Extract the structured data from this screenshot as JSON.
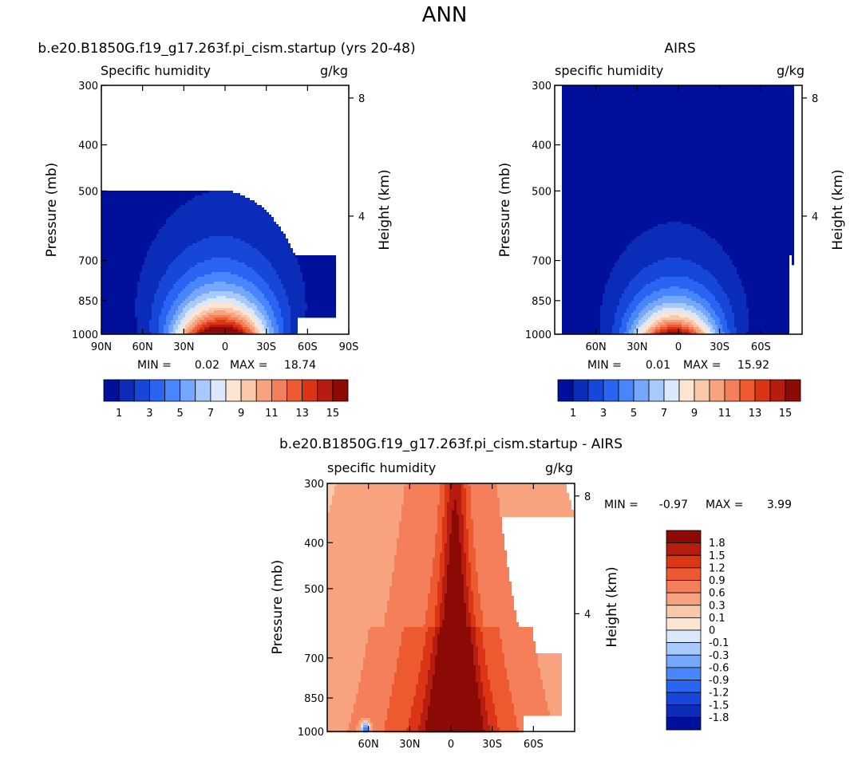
{
  "figure": {
    "title": "ANN"
  },
  "chart_data": [
    {
      "type": "contour",
      "panel": "model",
      "title": "b.e20.B1850G.f19_g17.263f.pi_cism.startup (yrs 20-48)",
      "left_string": "Specific humidity",
      "right_string": "g/kg",
      "ylabel": "Pressure (mb)",
      "ylabel_right": "Height (km)",
      "x_ticks": [
        "90N",
        "60N",
        "30N",
        "0",
        "30S",
        "60S",
        "90S"
      ],
      "x_tick_lat": [
        90,
        60,
        30,
        0,
        -30,
        -60,
        -90
      ],
      "xlim": [
        90,
        -90
      ],
      "y_ticks": [
        "300",
        "400",
        "500",
        "700",
        "850",
        "1000"
      ],
      "y_tick_p": [
        300,
        400,
        500,
        700,
        850,
        1000
      ],
      "ylim": [
        300,
        1000
      ],
      "height_ticks": [
        "8",
        "4"
      ],
      "height_km": [
        8,
        4
      ],
      "min_label": "MIN =",
      "min": "0.02",
      "max_label": "MAX =",
      "max": "18.74",
      "peak": 18.74,
      "decay": 1.35,
      "width": 33,
      "missing_pole_lat": -52,
      "missing_pole_p": 925,
      "colorbar": "sequential"
    },
    {
      "type": "contour",
      "panel": "obs",
      "title": "AIRS",
      "left_string": "specific humidity",
      "right_string": "g/kg",
      "ylabel": "Pressure (mb)",
      "ylabel_right": "Height (km)",
      "x_ticks": [
        "60N",
        "30N",
        "0",
        "30S",
        "60S"
      ],
      "x_tick_lat": [
        60,
        30,
        0,
        -30,
        -60
      ],
      "xlim": [
        90,
        -90
      ],
      "y_ticks": [
        "300",
        "400",
        "500",
        "700",
        "850",
        "1000"
      ],
      "y_tick_p": [
        300,
        400,
        500,
        700,
        850,
        1000
      ],
      "ylim": [
        300,
        1000
      ],
      "height_ticks": [
        "8",
        "4"
      ],
      "height_km": [
        8,
        4
      ],
      "min_label": "MIN =",
      "min": "0.01",
      "max_label": "MAX =",
      "max": "15.92",
      "peak": 15.92,
      "decay": 1.55,
      "width": 30,
      "data_lat_range": [
        85,
        -85
      ],
      "colorbar": "sequential"
    },
    {
      "type": "contour",
      "panel": "difference",
      "title": "b.e20.B1850G.f19_g17.263f.pi_cism.startup - AIRS",
      "left_string": "specific humidity",
      "right_string": "g/kg",
      "ylabel": "Pressure (mb)",
      "ylabel_right": "Height (km)",
      "x_ticks": [
        "60N",
        "30N",
        "0",
        "30S",
        "60S"
      ],
      "x_tick_lat": [
        60,
        30,
        0,
        -30,
        -60
      ],
      "xlim": [
        90,
        -90
      ],
      "y_ticks": [
        "300",
        "400",
        "500",
        "700",
        "850",
        "1000"
      ],
      "y_tick_p": [
        300,
        400,
        500,
        700,
        850,
        1000
      ],
      "ylim": [
        300,
        1000
      ],
      "height_ticks": [
        "8",
        "4"
      ],
      "height_km": [
        8,
        4
      ],
      "min_label": "MIN =",
      "min": "-0.97",
      "max_label": "MAX =",
      "max": "3.99",
      "missing_pole_lat": -52,
      "missing_pole_p": 925,
      "colorbar": "difference"
    }
  ],
  "colorbars": {
    "sequential": {
      "orientation": "horizontal",
      "levels": [
        1,
        2,
        3,
        4,
        5,
        6,
        7,
        8,
        9,
        10,
        11,
        12,
        13,
        14,
        15
      ],
      "labels": [
        "1",
        "3",
        "5",
        "7",
        "9",
        "11",
        "13",
        "15"
      ],
      "label_values": [
        1,
        3,
        5,
        7,
        9,
        11,
        13,
        15
      ],
      "colors": [
        "#00109a",
        "#0a2cb8",
        "#1647d8",
        "#2a64f2",
        "#4a86fb",
        "#75a8fb",
        "#a7c9fb",
        "#dbe8fb",
        "#fde5d3",
        "#f9c7a9",
        "#f7a380",
        "#f47f5a",
        "#ee5a30",
        "#dc3516",
        "#b61c10",
        "#8c0a05"
      ]
    },
    "difference": {
      "orientation": "vertical",
      "labels": [
        "1.8",
        "1.5",
        "1.2",
        "0.9",
        "0.6",
        "0.3",
        "0.1",
        "0",
        "-0.1",
        "-0.3",
        "-0.6",
        "-0.9",
        "-1.2",
        "-1.5",
        "-1.8"
      ],
      "label_values": [
        1.8,
        1.5,
        1.2,
        0.9,
        0.6,
        0.3,
        0.1,
        0,
        -0.1,
        -0.3,
        -0.6,
        -0.9,
        -1.2,
        -1.5,
        -1.8
      ],
      "colors": [
        "#8c0a05",
        "#b61c10",
        "#dc3516",
        "#ee5a30",
        "#f47f5a",
        "#f7a380",
        "#f9c7a9",
        "#fde5d3",
        "#dbe8fb",
        "#a7c9fb",
        "#75a8fb",
        "#4a86fb",
        "#2a64f2",
        "#1647d8",
        "#0a2cb8",
        "#00109a"
      ],
      "thresholds": [
        -1.8,
        -1.5,
        -1.2,
        -0.9,
        -0.6,
        -0.3,
        -0.1,
        0,
        0.1,
        0.3,
        0.6,
        0.9,
        1.2,
        1.5,
        1.8
      ]
    }
  }
}
